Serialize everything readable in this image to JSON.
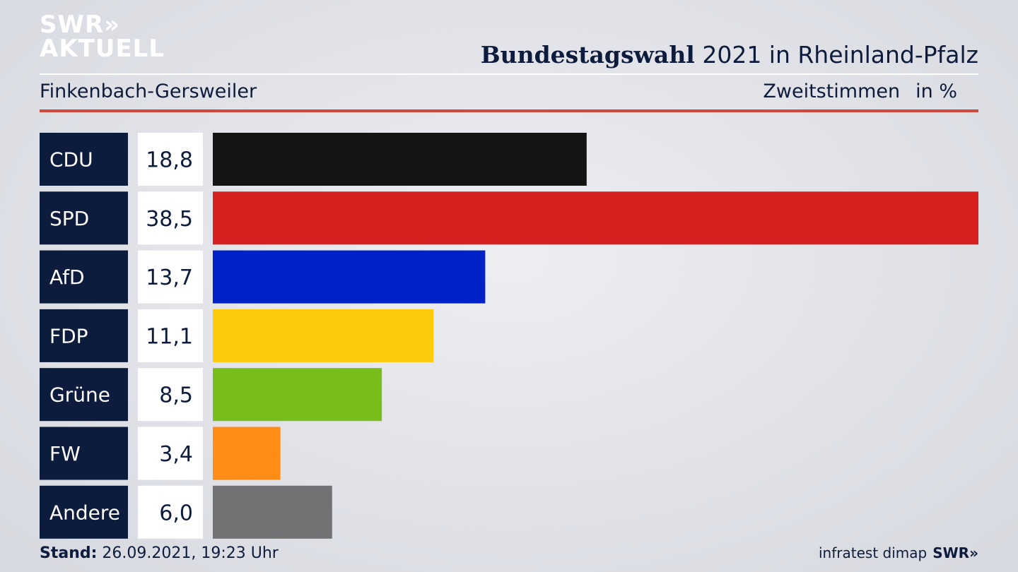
{
  "header": {
    "logo_line1": "SWR»",
    "logo_line2": "AKTUELL",
    "title_bold": "Bundestagswahl",
    "title_rest": " 2021 in Rheinland-Pfalz",
    "region": "Finkenbach-Gersweiler",
    "measure": "Zweitstimmen",
    "unit": "in %"
  },
  "chart_data": {
    "type": "bar",
    "orientation": "horizontal",
    "categories": [
      "CDU",
      "SPD",
      "AfD",
      "FDP",
      "Grüne",
      "FW",
      "Andere"
    ],
    "values": [
      18.8,
      38.5,
      13.7,
      11.1,
      8.5,
      3.4,
      6.0
    ],
    "value_labels": [
      "18,8",
      "38,5",
      "13,7",
      "11,1",
      "8,5",
      "3,4",
      "6,0"
    ],
    "colors": [
      "#141414",
      "#d62020",
      "#0021c8",
      "#fecb0a",
      "#79bd1b",
      "#ff8c17",
      "#727274"
    ],
    "xlim": [
      0,
      38.5
    ]
  },
  "footer": {
    "stand_label": "Stand:",
    "stand_value": " 26.09.2021, 19:23 Uhr",
    "source": "infratest dimap",
    "source_logo": "SWR»"
  }
}
